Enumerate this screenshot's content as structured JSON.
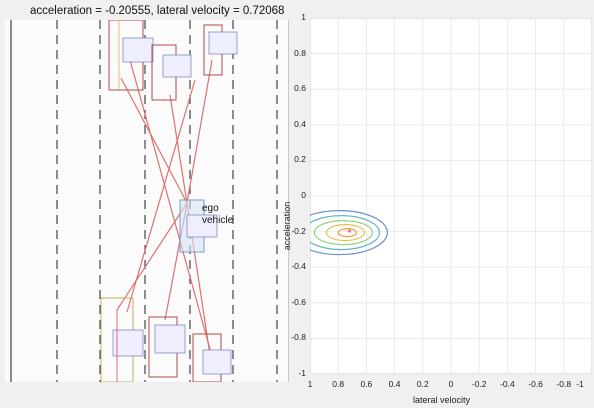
{
  "title": "acceleration = -0.20555, lateral velocity = 0.72068",
  "ego_label_line1": "ego",
  "ego_label_line2": "vehicle",
  "plot": {
    "xlabel": "lateral velocity",
    "ylabel": "acceleration",
    "x_ticks": [
      "1",
      "0.8",
      "0.6",
      "0.4",
      "0.2",
      "0",
      "-0.2",
      "-0.4",
      "-0.6",
      "-0.8",
      "-1"
    ],
    "y_ticks": [
      "1",
      "0.8",
      "0.6",
      "0.4",
      "0.2",
      "0",
      "-0.2",
      "-0.4",
      "-0.6",
      "-0.8",
      "-1"
    ],
    "marker": {
      "lateral_velocity": 0.72068,
      "acceleration": -0.20555
    },
    "contour_colors": [
      "#6f8fd0",
      "#5fb7c7",
      "#9ad07a",
      "#e5c34a",
      "#f09a3a"
    ],
    "marker_color": "#e8443a"
  }
}
